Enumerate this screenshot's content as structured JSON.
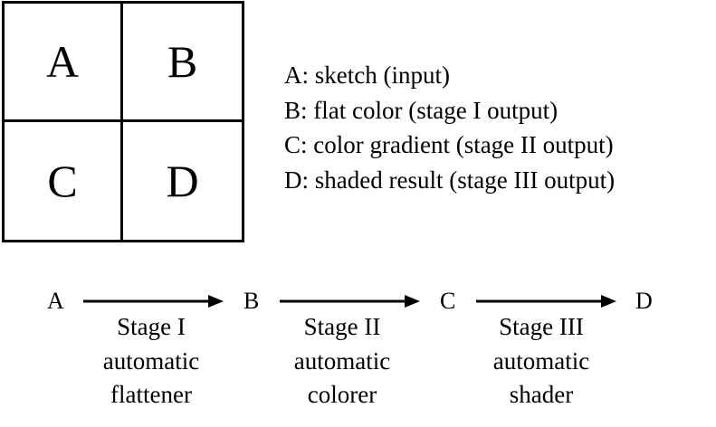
{
  "grid": {
    "cells": [
      "A",
      "B",
      "C",
      "D"
    ]
  },
  "legend": {
    "items": [
      "A: sketch (input)",
      "B: flat color (stage I output)",
      "C: color gradient (stage II output)",
      "D: shaded result (stage III output)"
    ]
  },
  "flow": {
    "nodes": [
      "A",
      "B",
      "C",
      "D"
    ],
    "stages": [
      {
        "line1": "Stage I",
        "line2": "automatic",
        "line3": "flattener"
      },
      {
        "line1": "Stage II",
        "line2": "automatic",
        "line3": "colorer"
      },
      {
        "line1": "Stage III",
        "line2": "automatic",
        "line3": "shader"
      }
    ]
  }
}
